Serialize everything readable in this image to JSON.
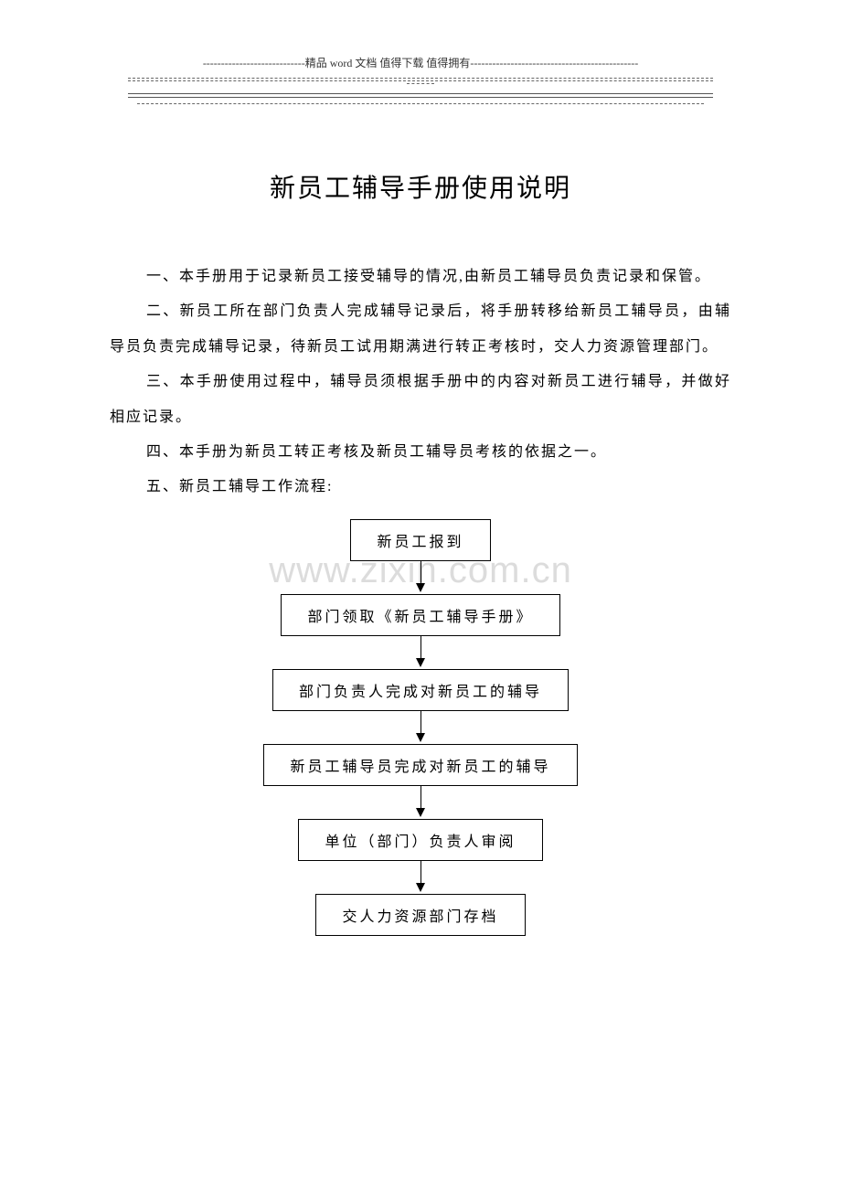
{
  "header": {
    "banner": "----------------------------精品 word 文档  值得下载  值得拥有----------------------------------------------"
  },
  "watermark": "www.zixin.com.cn",
  "title": "新员工辅导手册使用说明",
  "paragraphs": {
    "p1": "一、本手册用于记录新员工接受辅导的情况,由新员工辅导员负责记录和保管。",
    "p2": "二、新员工所在部门负责人完成辅导记录后，将手册转移给新员工辅导员，由辅导员负责完成辅导记录，待新员工试用期满进行转正考核时，交人力资源管理部门。",
    "p3": "三、本手册使用过程中，辅导员须根据手册中的内容对新员工进行辅导，并做好相应记录。",
    "p4": "四、本手册为新员工转正考核及新员工辅导员考核的依据之一。",
    "p5": "五、新员工辅导工作流程:"
  },
  "flowchart": {
    "type": "flowchart",
    "nodes": [
      {
        "id": "n1",
        "label": "新员工报到"
      },
      {
        "id": "n2",
        "label": "部门领取《新员工辅导手册》"
      },
      {
        "id": "n3",
        "label": "部门负责人完成对新员工的辅导"
      },
      {
        "id": "n4",
        "label": "新员工辅导员完成对新员工的辅导"
      },
      {
        "id": "n5",
        "label": "单位（部门）负责人审阅"
      },
      {
        "id": "n6",
        "label": "交人力资源部门存档"
      }
    ],
    "edges": [
      {
        "from": "n1",
        "to": "n2"
      },
      {
        "from": "n2",
        "to": "n3"
      },
      {
        "from": "n3",
        "to": "n4"
      },
      {
        "from": "n4",
        "to": "n5"
      },
      {
        "from": "n5",
        "to": "n6"
      }
    ],
    "node_border_color": "#000000",
    "node_bg_color": "#ffffff",
    "node_font_size": 16,
    "arrow_color": "#000000",
    "background_color": "#ffffff"
  },
  "colors": {
    "text": "#000000",
    "header_text": "#333333",
    "line": "#555555",
    "dashed": "#666666",
    "watermark": "#dcdcdc",
    "background": "#ffffff"
  },
  "typography": {
    "title_fontsize": 28,
    "body_fontsize": 16,
    "header_fontsize": 12,
    "watermark_fontsize": 40,
    "body_line_height": 2.4
  }
}
